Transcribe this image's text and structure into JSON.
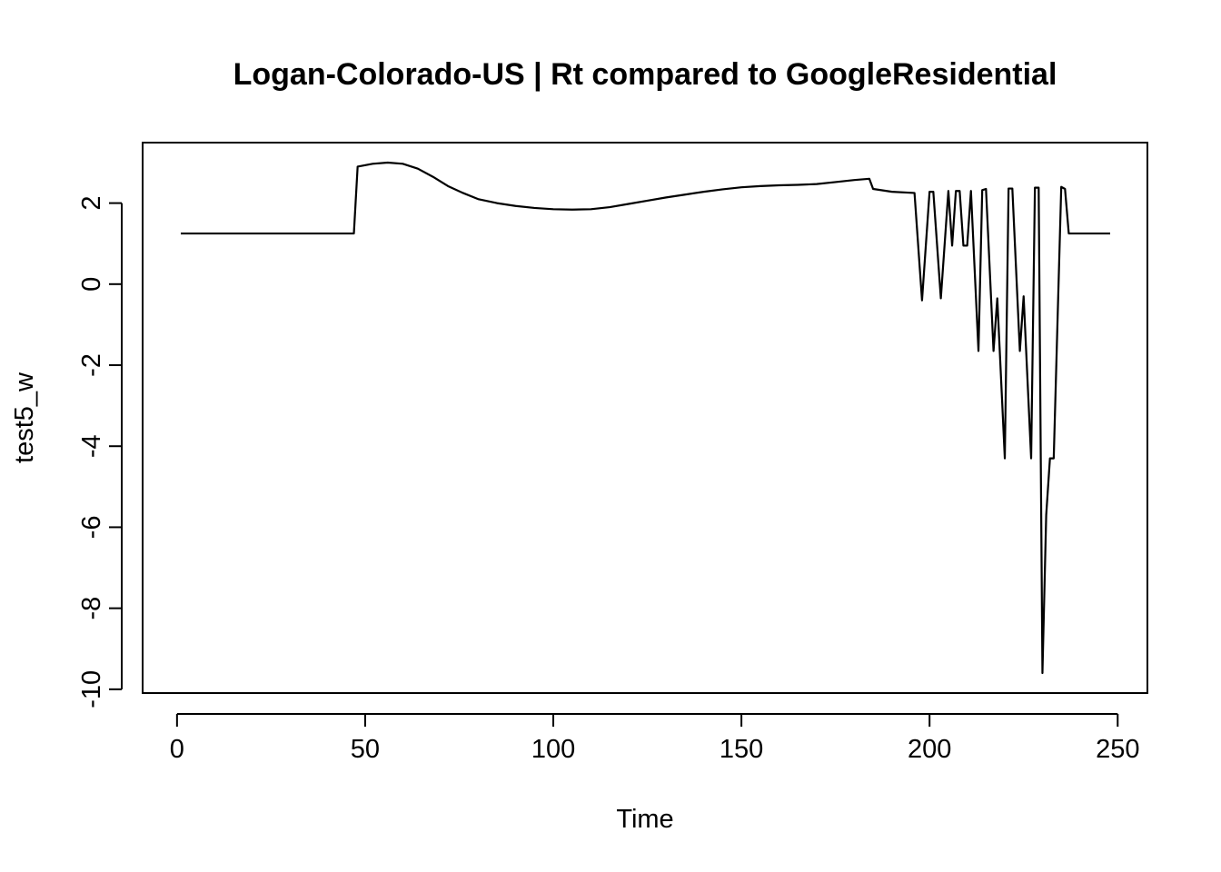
{
  "chart_data": {
    "type": "line",
    "title": "Logan-Colorado-US | Rt compared to GoogleResidential",
    "xlabel": "Time",
    "ylabel": "test5_w",
    "xlim": [
      1,
      248
    ],
    "ylim": [
      -9.6,
      3.0
    ],
    "xticks": [
      0,
      50,
      100,
      150,
      200,
      250
    ],
    "yticks": [
      -10,
      -8,
      -6,
      -4,
      -2,
      0,
      2
    ],
    "grid": false,
    "legend": "none",
    "series": [
      {
        "points": [
          [
            1,
            1.25
          ],
          [
            47,
            1.25
          ],
          [
            48,
            2.9
          ],
          [
            52,
            2.97
          ],
          [
            56,
            3.0
          ],
          [
            60,
            2.97
          ],
          [
            64,
            2.85
          ],
          [
            68,
            2.65
          ],
          [
            72,
            2.42
          ],
          [
            76,
            2.25
          ],
          [
            80,
            2.1
          ],
          [
            85,
            2.0
          ],
          [
            90,
            1.93
          ],
          [
            95,
            1.88
          ],
          [
            100,
            1.85
          ],
          [
            105,
            1.84
          ],
          [
            110,
            1.85
          ],
          [
            115,
            1.9
          ],
          [
            120,
            1.98
          ],
          [
            125,
            2.06
          ],
          [
            130,
            2.14
          ],
          [
            135,
            2.21
          ],
          [
            140,
            2.28
          ],
          [
            145,
            2.34
          ],
          [
            150,
            2.39
          ],
          [
            155,
            2.42
          ],
          [
            160,
            2.44
          ],
          [
            165,
            2.45
          ],
          [
            170,
            2.47
          ],
          [
            175,
            2.52
          ],
          [
            180,
            2.57
          ],
          [
            184,
            2.6
          ],
          [
            185,
            2.35
          ],
          [
            190,
            2.28
          ],
          [
            196,
            2.25
          ],
          [
            198,
            -0.4
          ],
          [
            200,
            2.28
          ],
          [
            201,
            2.28
          ],
          [
            203,
            -0.35
          ],
          [
            205,
            2.3
          ],
          [
            206,
            0.95
          ],
          [
            207,
            2.3
          ],
          [
            208,
            2.3
          ],
          [
            209,
            0.95
          ],
          [
            210,
            0.95
          ],
          [
            211,
            2.3
          ],
          [
            213,
            -1.65
          ],
          [
            214,
            2.32
          ],
          [
            215,
            2.35
          ],
          [
            217,
            -1.65
          ],
          [
            218,
            -0.35
          ],
          [
            220,
            -4.3
          ],
          [
            221,
            2.36
          ],
          [
            222,
            2.36
          ],
          [
            224,
            -1.65
          ],
          [
            225,
            -0.3
          ],
          [
            227,
            -4.3
          ],
          [
            228,
            2.38
          ],
          [
            229,
            2.38
          ],
          [
            230,
            -9.6
          ],
          [
            231,
            -5.7
          ],
          [
            232,
            -4.3
          ],
          [
            233,
            -4.3
          ],
          [
            235,
            2.4
          ],
          [
            236,
            2.35
          ],
          [
            237,
            1.25
          ],
          [
            248,
            1.25
          ]
        ]
      }
    ]
  }
}
